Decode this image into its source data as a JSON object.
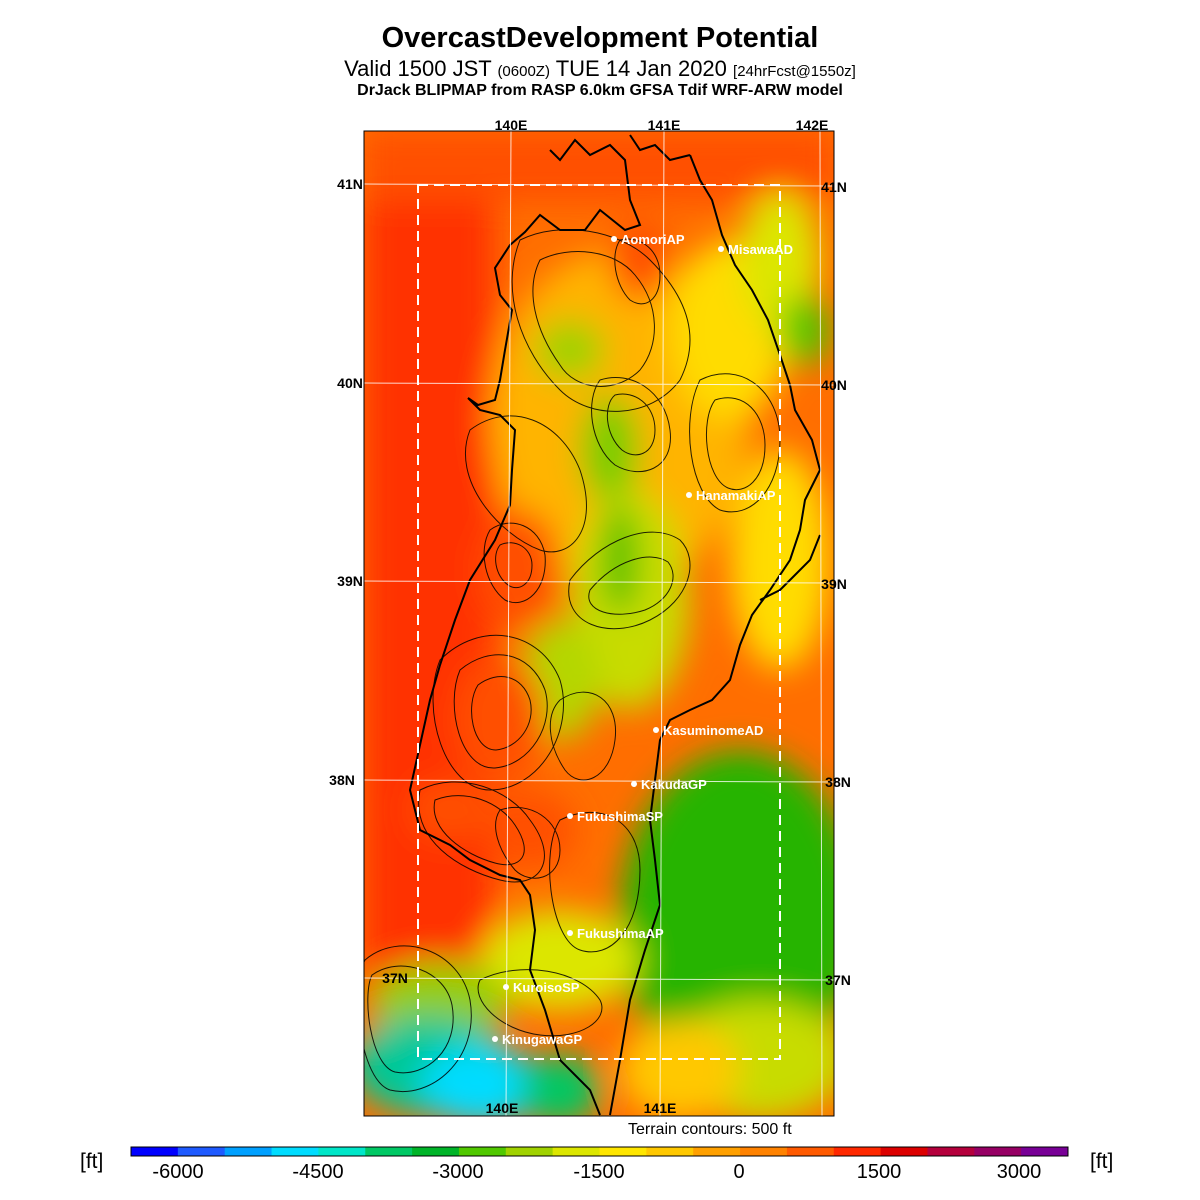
{
  "header": {
    "title": "OvercastDevelopment Potential",
    "valid_prefix": "Valid 1500 JST",
    "valid_utc": "(0600Z)",
    "valid_date": "TUE 14 Jan 2020",
    "forecast": "[24hrFcst@1550z]",
    "model": "DrJack BLIPMAP from RASP 6.0km GFSA Tdif WRF-ARW model"
  },
  "map": {
    "longitude_labels_top": [
      "140E",
      "141E",
      "142E"
    ],
    "longitude_labels_bottom": [
      "140E",
      "141E"
    ],
    "latitude_labels": [
      "41N",
      "40N",
      "39N",
      "38N",
      "37N"
    ],
    "sites": [
      {
        "name": "AomoriAP"
      },
      {
        "name": "MisawaAD"
      },
      {
        "name": "HanamakiAP"
      },
      {
        "name": "KasuminomeAD"
      },
      {
        "name": "KakudaGP"
      },
      {
        "name": "FukushimaSP"
      },
      {
        "name": "FukushimaAP"
      },
      {
        "name": "KuroisoSP"
      },
      {
        "name": "KinugawaGP"
      }
    ],
    "terrain_note": "Terrain contours: 500 ft"
  },
  "colorbar": {
    "unit_left": "[ft]",
    "unit_right": "[ft]",
    "tick_labels": [
      "-6000",
      "-4500",
      "-3000",
      "-1500",
      "0",
      "1500",
      "3000"
    ],
    "colors": [
      "#0000ff",
      "#1e5aff",
      "#00a0ff",
      "#00dcff",
      "#00e6c8",
      "#00c864",
      "#00b428",
      "#50c800",
      "#a0d200",
      "#dce600",
      "#ffe600",
      "#ffc800",
      "#ffa000",
      "#ff8200",
      "#ff5a00",
      "#ff2800",
      "#dc0000",
      "#b4003c",
      "#960064",
      "#780096"
    ]
  }
}
